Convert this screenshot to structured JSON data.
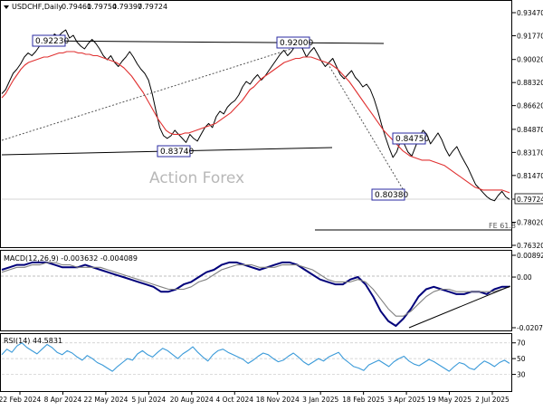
{
  "chart_data": [
    {
      "type": "line",
      "panel": "price",
      "title": "USDCHF,Daily",
      "ohlc": [
        "0.79461",
        "0.79754",
        "0.79397",
        "0.79724"
      ],
      "watermark": "Action Forex",
      "y_ticks": [
        "0.93470",
        "0.91770",
        "0.90020",
        "0.88320",
        "0.86620",
        "0.84870",
        "0.83170",
        "0.81470",
        "0.79724",
        "0.78020",
        "0.76320"
      ],
      "ylim": [
        0.7632,
        0.9347
      ],
      "x_ticks": [
        "22 Feb 2024",
        "8 Apr 2024",
        "22 May 2024",
        "5 Jul 2024",
        "20 Aug 2024",
        "4 Oct 2024",
        "18 Nov 2024",
        "3 Jan 2025",
        "18 Feb 2025",
        "3 Apr 2025",
        "19 May 2025",
        "2 Jul 2025"
      ],
      "last_price": "0.79724",
      "series": [
        {
          "name": "price",
          "color": "#000000",
          "values": [
            0.875,
            0.878,
            0.884,
            0.89,
            0.893,
            0.897,
            0.902,
            0.905,
            0.903,
            0.906,
            0.91,
            0.914,
            0.911,
            0.915,
            0.919,
            0.917,
            0.92,
            0.922,
            0.916,
            0.918,
            0.913,
            0.91,
            0.908,
            0.912,
            0.915,
            0.912,
            0.908,
            0.903,
            0.9,
            0.903,
            0.898,
            0.895,
            0.899,
            0.902,
            0.906,
            0.902,
            0.897,
            0.893,
            0.89,
            0.885,
            0.875,
            0.862,
            0.85,
            0.844,
            0.842,
            0.844,
            0.848,
            0.845,
            0.842,
            0.839,
            0.845,
            0.842,
            0.84,
            0.845,
            0.85,
            0.853,
            0.85,
            0.858,
            0.862,
            0.86,
            0.865,
            0.868,
            0.87,
            0.874,
            0.88,
            0.884,
            0.882,
            0.886,
            0.889,
            0.885,
            0.888,
            0.892,
            0.896,
            0.9,
            0.904,
            0.907,
            0.903,
            0.906,
            0.91,
            0.912,
            0.908,
            0.902,
            0.906,
            0.909,
            0.904,
            0.899,
            0.895,
            0.898,
            0.901,
            0.895,
            0.889,
            0.886,
            0.889,
            0.892,
            0.887,
            0.884,
            0.88,
            0.882,
            0.878,
            0.871,
            0.862,
            0.852,
            0.843,
            0.835,
            0.828,
            0.832,
            0.84,
            0.838,
            0.832,
            0.829,
            0.836,
            0.843,
            0.848,
            0.845,
            0.838,
            0.842,
            0.846,
            0.841,
            0.834,
            0.829,
            0.833,
            0.836,
            0.83,
            0.825,
            0.82,
            0.814,
            0.808,
            0.805,
            0.802,
            0.799,
            0.797,
            0.796,
            0.8,
            0.803,
            0.799,
            0.797
          ]
        },
        {
          "name": "ma",
          "color": "#e03030",
          "values": [
            0.872,
            0.875,
            0.88,
            0.885,
            0.889,
            0.893,
            0.896,
            0.898,
            0.899,
            0.9,
            0.901,
            0.902,
            0.902,
            0.903,
            0.904,
            0.905,
            0.905,
            0.906,
            0.906,
            0.906,
            0.905,
            0.905,
            0.904,
            0.904,
            0.903,
            0.903,
            0.902,
            0.901,
            0.9,
            0.899,
            0.898,
            0.896,
            0.894,
            0.891,
            0.888,
            0.884,
            0.88,
            0.876,
            0.871,
            0.866,
            0.861,
            0.856,
            0.852,
            0.848,
            0.846,
            0.845,
            0.845,
            0.845,
            0.846,
            0.846,
            0.847,
            0.848,
            0.849,
            0.85,
            0.851,
            0.852,
            0.853,
            0.855,
            0.857,
            0.859,
            0.861,
            0.864,
            0.867,
            0.87,
            0.874,
            0.878,
            0.88,
            0.883,
            0.886,
            0.888,
            0.89,
            0.892,
            0.894,
            0.896,
            0.898,
            0.899,
            0.9,
            0.901,
            0.901,
            0.902,
            0.902,
            0.902,
            0.901,
            0.9,
            0.899,
            0.898,
            0.897,
            0.895,
            0.893,
            0.89,
            0.887,
            0.884,
            0.88,
            0.876,
            0.872,
            0.868,
            0.864,
            0.86,
            0.856,
            0.852,
            0.848,
            0.845,
            0.842,
            0.839,
            0.836,
            0.833,
            0.831,
            0.829,
            0.828,
            0.827,
            0.826,
            0.826,
            0.826,
            0.825,
            0.824,
            0.823,
            0.822,
            0.82,
            0.818,
            0.816,
            0.814,
            0.812,
            0.81,
            0.808,
            0.806,
            0.805,
            0.804,
            0.804,
            0.804,
            0.804,
            0.804,
            0.804,
            0.803,
            0.802
          ]
        }
      ],
      "annotations": [
        "0.92230",
        "0.92000",
        "0.83740",
        "0.84750",
        "0.80380",
        "FE 61.8"
      ]
    },
    {
      "type": "line",
      "panel": "macd",
      "title": "MACD(12,26,9) -0.003632 -0.004089",
      "y_ticks": [
        "0.008923",
        "0.00",
        "-0.020759"
      ],
      "ylim": [
        -0.020759,
        0.008923
      ],
      "series": [
        {
          "name": "macd",
          "color": "#00007a",
          "values": [
            0.003,
            0.004,
            0.005,
            0.005,
            0.006,
            0.006,
            0.006,
            0.005,
            0.004,
            0.004,
            0.004,
            0.005,
            0.004,
            0.003,
            0.002,
            0.001,
            0.0,
            -0.001,
            -0.002,
            -0.003,
            -0.004,
            -0.006,
            -0.006,
            -0.005,
            -0.003,
            -0.002,
            0.0,
            0.002,
            0.003,
            0.005,
            0.006,
            0.006,
            0.005,
            0.004,
            0.003,
            0.004,
            0.005,
            0.006,
            0.006,
            0.005,
            0.003,
            0.001,
            -0.001,
            -0.002,
            -0.003,
            -0.003,
            -0.001,
            0.0,
            -0.003,
            -0.008,
            -0.014,
            -0.018,
            -0.02,
            -0.017,
            -0.013,
            -0.008,
            -0.005,
            -0.004,
            -0.005,
            -0.006,
            -0.007,
            -0.007,
            -0.006,
            -0.006,
            -0.007,
            -0.005,
            -0.004,
            -0.004
          ]
        },
        {
          "name": "signal",
          "color": "#808080",
          "values": [
            0.002,
            0.003,
            0.004,
            0.004,
            0.005,
            0.005,
            0.006,
            0.006,
            0.005,
            0.005,
            0.004,
            0.004,
            0.004,
            0.004,
            0.003,
            0.002,
            0.001,
            0.0,
            -0.001,
            -0.002,
            -0.003,
            -0.004,
            -0.005,
            -0.005,
            -0.005,
            -0.004,
            -0.002,
            -0.001,
            0.001,
            0.003,
            0.004,
            0.005,
            0.005,
            0.005,
            0.004,
            0.004,
            0.004,
            0.005,
            0.005,
            0.005,
            0.004,
            0.003,
            0.001,
            -0.001,
            -0.002,
            -0.002,
            -0.002,
            -0.001,
            -0.002,
            -0.005,
            -0.009,
            -0.013,
            -0.016,
            -0.016,
            -0.014,
            -0.011,
            -0.008,
            -0.006,
            -0.005,
            -0.005,
            -0.006,
            -0.006,
            -0.006,
            -0.006,
            -0.006,
            -0.006,
            -0.005,
            -0.004
          ]
        }
      ]
    },
    {
      "type": "line",
      "panel": "rsi",
      "title": "RSI(14) 44.5831",
      "y_ticks": [
        "70",
        "50",
        "30"
      ],
      "ylim": [
        10,
        80
      ],
      "series": [
        {
          "name": "rsi",
          "color": "#3a9ad9",
          "values": [
            55,
            62,
            58,
            66,
            70,
            64,
            60,
            56,
            62,
            68,
            64,
            58,
            55,
            60,
            57,
            52,
            48,
            54,
            50,
            45,
            42,
            38,
            34,
            40,
            45,
            50,
            48,
            56,
            60,
            55,
            52,
            58,
            63,
            60,
            55,
            50,
            56,
            60,
            65,
            58,
            52,
            47,
            55,
            60,
            62,
            58,
            55,
            52,
            49,
            44,
            48,
            53,
            57,
            55,
            50,
            46,
            48,
            53,
            57,
            52,
            46,
            42,
            46,
            50,
            47,
            52,
            55,
            58,
            50,
            45,
            40,
            38,
            35,
            42,
            45,
            48,
            44,
            40,
            46,
            50,
            53,
            47,
            43,
            41,
            45,
            49,
            46,
            42,
            38,
            34,
            40,
            45,
            43,
            38,
            36,
            42,
            47,
            44,
            40,
            45,
            48,
            44
          ]
        }
      ]
    }
  ]
}
